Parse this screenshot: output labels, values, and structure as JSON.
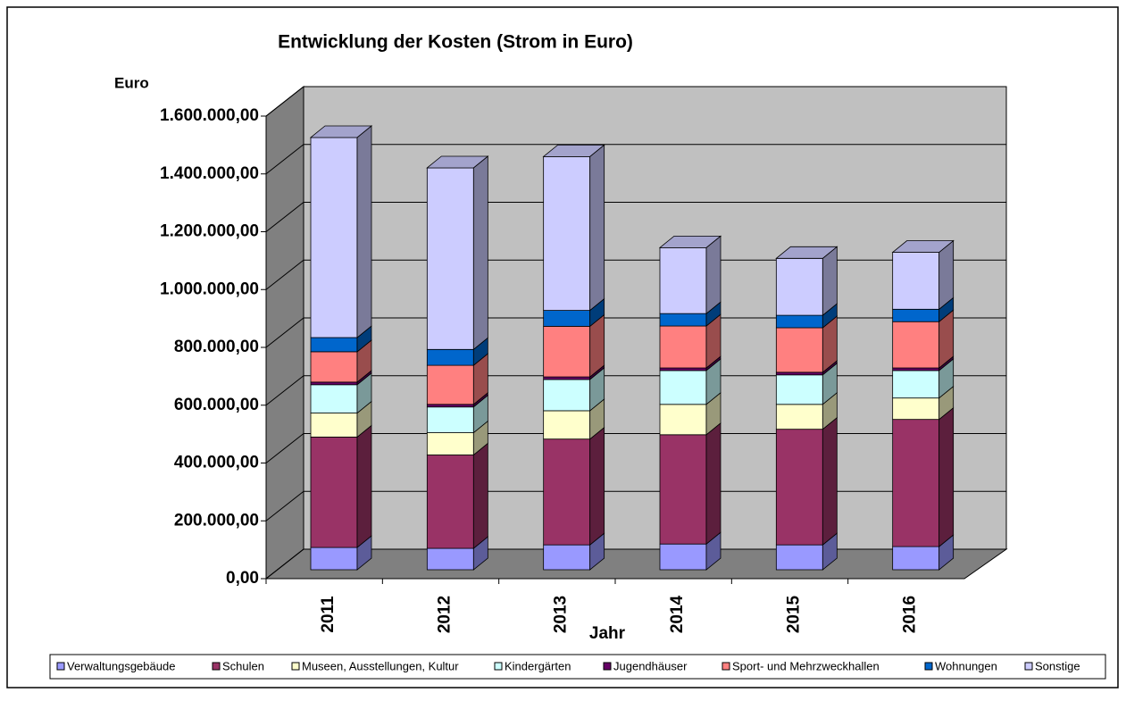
{
  "chart_data": {
    "type": "bar3d_stacked",
    "title": "Entwicklung der Kosten (Strom in Euro)",
    "y_label": "Euro",
    "x_label": "Jahr",
    "categories": [
      "2011",
      "2012",
      "2013",
      "2014",
      "2015",
      "2016"
    ],
    "series": [
      {
        "name": "Verwaltungsgebäude",
        "color": "#9999ff",
        "values": [
          77000,
          74000,
          86000,
          89000,
          86000,
          80000
        ]
      },
      {
        "name": "Schulen",
        "color": "#993366",
        "values": [
          382000,
          323000,
          366000,
          378000,
          400000,
          440000
        ]
      },
      {
        "name": "Museen, Ausstellungen, Kultur",
        "color": "#ffffcc",
        "values": [
          83000,
          77000,
          98000,
          105000,
          86000,
          74000
        ]
      },
      {
        "name": "Kindergärten",
        "color": "#ccffff",
        "values": [
          98000,
          89000,
          108000,
          117000,
          102000,
          95000
        ]
      },
      {
        "name": "Jugendhäuser",
        "color": "#660066",
        "values": [
          9000,
          9000,
          9000,
          9000,
          9000,
          9000
        ]
      },
      {
        "name": "Sport- und Mehrzweckhallen",
        "color": "#ff8080",
        "values": [
          105000,
          135000,
          175000,
          145000,
          154000,
          160000
        ]
      },
      {
        "name": "Wohnungen",
        "color": "#0066cc",
        "values": [
          49000,
          55000,
          55000,
          43000,
          43000,
          43000
        ]
      },
      {
        "name": "Sonstige",
        "color": "#ccccff",
        "values": [
          692000,
          628000,
          532000,
          228000,
          197000,
          197000
        ]
      }
    ],
    "ylim": [
      0,
      1600000
    ],
    "yticks": [
      {
        "value": 0,
        "label": "0,00"
      },
      {
        "value": 200000,
        "label": "200.000,00"
      },
      {
        "value": 400000,
        "label": "400.000,00"
      },
      {
        "value": 600000,
        "label": "600.000,00"
      },
      {
        "value": 800000,
        "label": "800.000,00"
      },
      {
        "value": 1000000,
        "label": "1.000.000,00"
      },
      {
        "value": 1200000,
        "label": "1.200.000,00"
      },
      {
        "value": 1400000,
        "label": "1.400.000,00"
      },
      {
        "value": 1600000,
        "label": "1.600.000,00"
      }
    ],
    "grid": true
  }
}
